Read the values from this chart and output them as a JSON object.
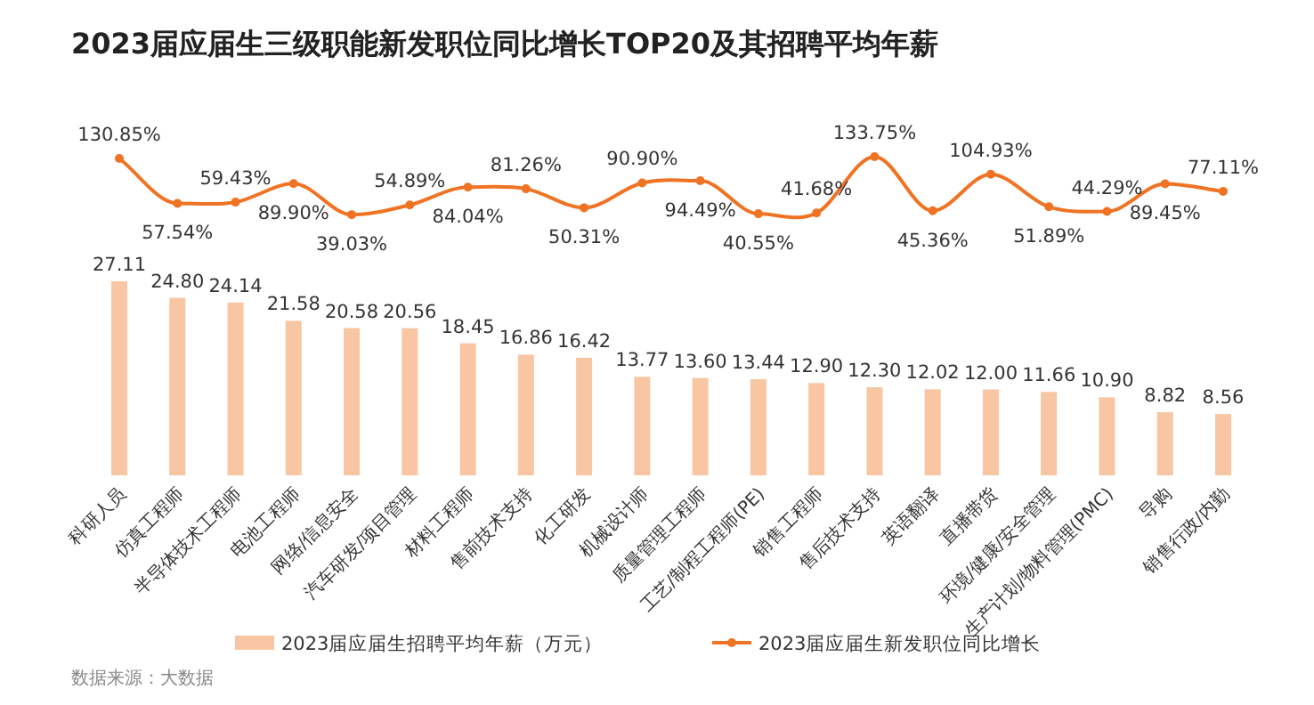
{
  "chart_data": [
    {
      "type": "line",
      "title": "2023届应届生三级职能新发职位同比增长TOP20及其招聘平均年薪",
      "categories": [
        null,
        null,
        null,
        null,
        null,
        null,
        null,
        null,
        null,
        null,
        null,
        null,
        null,
        null,
        null,
        null,
        null,
        null,
        null,
        null
      ],
      "marker": "circle",
      "legend": "bottom",
      "series": [
        {
          "name": "2023届应届生新发职位同比增长",
          "color": "#f07323",
          "values": [
            130.85,
            57.54,
            59.43,
            89.9,
            39.03,
            54.89,
            84.04,
            81.26,
            50.31,
            90.9,
            94.49,
            40.55,
            41.68,
            133.75,
            45.36,
            104.93,
            51.89,
            44.29,
            89.45,
            77.11
          ],
          "value_labels": [
            "130.85%",
            "57.54%",
            "59.43%",
            "89.90%",
            "39.03%",
            "54.89%",
            "84.04%",
            "81.26%",
            "50.31%",
            "90.90%",
            "94.49%",
            "40.55%",
            "41.68%",
            "133.75%",
            "45.36%",
            "104.93%",
            "51.89%",
            "44.29%",
            "89.45%",
            "77.11%"
          ]
        }
      ]
    },
    {
      "type": "bar",
      "categories": [
        "科研人员",
        "仿真工程师",
        "半导体技术工程师",
        "电池工程师",
        "网络/信息安全",
        "汽车研发/项目管理",
        "材料工程师",
        "售前技术支持",
        "化工研发",
        "机械设计师",
        "质量管理工程师",
        "工艺/制程工程师(PE)",
        "销售工程师",
        "售后技术支持",
        "英语翻译",
        "直播带货",
        "环境/健康/安全管理",
        "生产计划/物料管理(PMC)",
        "导购",
        "销售行政/内勤"
      ],
      "legend": "bottom",
      "series": [
        {
          "name": "2023届应届生招聘平均年薪（万元）",
          "color": "#f8c6a2",
          "values": [
            27.11,
            24.8,
            24.14,
            21.58,
            20.58,
            20.56,
            18.45,
            16.86,
            16.42,
            13.77,
            13.6,
            13.44,
            12.9,
            12.3,
            12.02,
            12.0,
            11.66,
            10.9,
            8.82,
            8.56
          ],
          "value_labels": [
            "27.11",
            "24.80",
            "24.14",
            "21.58",
            "20.58",
            "20.56",
            "18.45",
            "16.86",
            "16.42",
            "13.77",
            "13.60",
            "13.44",
            "12.90",
            "12.30",
            "12.02",
            "12.00",
            "11.66",
            "10.90",
            "8.82",
            "8.56"
          ]
        }
      ],
      "annotations": [
        "数据来源：大数据"
      ]
    }
  ]
}
